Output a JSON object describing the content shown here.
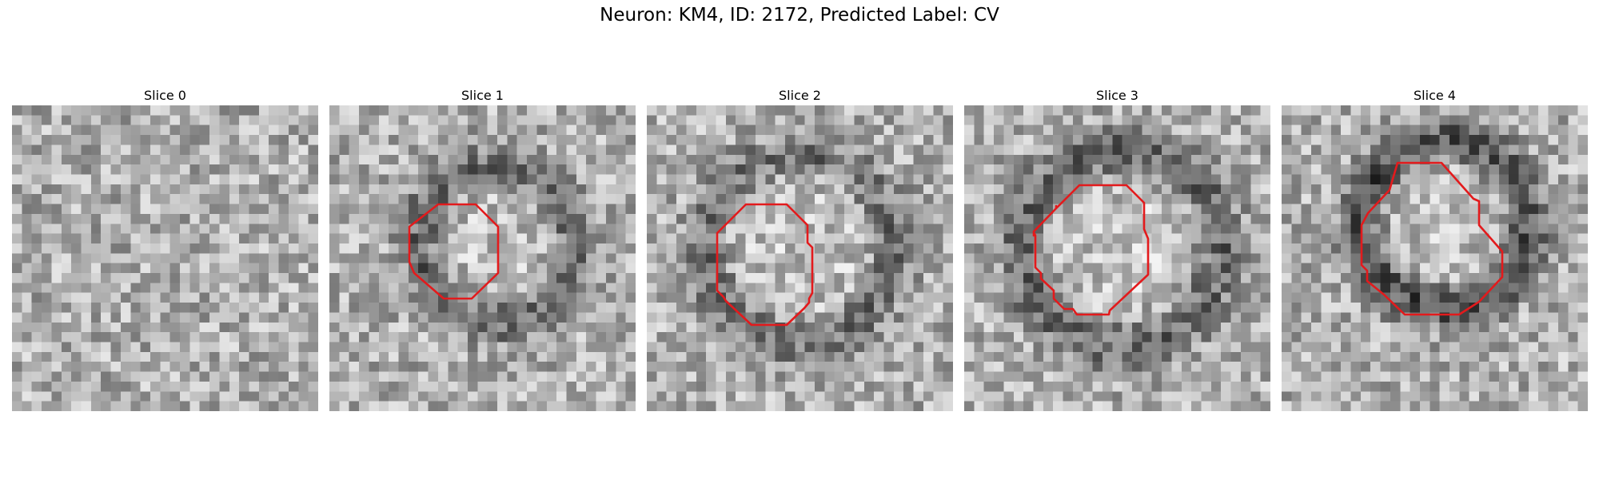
{
  "figure": {
    "title": "Neuron: KM4, ID: 2172, Predicted Label: CV"
  },
  "colors": {
    "outline": "#e31a1c"
  },
  "panels": [
    {
      "title": "Slice 0",
      "has_outline": false
    },
    {
      "title": "Slice 1",
      "has_outline": true
    },
    {
      "title": "Slice 2",
      "has_outline": true
    },
    {
      "title": "Slice 3",
      "has_outline": true
    },
    {
      "title": "Slice 4",
      "has_outline": true
    }
  ]
}
